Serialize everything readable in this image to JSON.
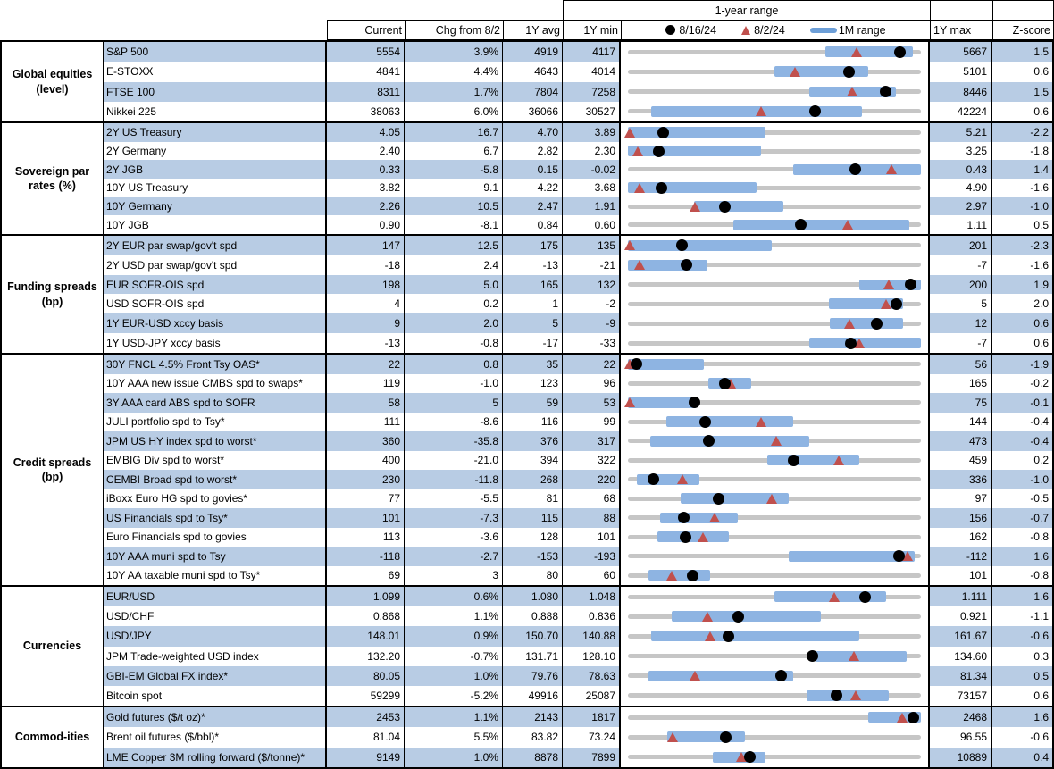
{
  "colors": {
    "stripe": "#b8cce4",
    "bar": "#8eb4e2",
    "legend_bar": "#6d9fd8",
    "triangle": "#c0504d",
    "dot": "#000000",
    "track": "#c6c6c6"
  },
  "chart_data": {
    "type": "table",
    "title": "1-year range",
    "legend": [
      {
        "marker": "black-dot",
        "label": "8/16/24"
      },
      {
        "marker": "red-triangle",
        "label": "8/2/24"
      },
      {
        "marker": "blue-bar",
        "label": "1M range"
      }
    ],
    "columns": [
      "Current",
      "Chg from 8/2",
      "1Y avg",
      "1Y min",
      "1Y max",
      "Z-score"
    ],
    "range_note": "bar = 1M range, dot = 8/16/24 level, triangle = 8/2/24 level, positions are fractions of the 1Y min-to-max span",
    "sections": [
      {
        "category": "Global equities (level)",
        "rows": [
          {
            "label": "S&P 500",
            "current": "5554",
            "chg": "3.9%",
            "avg": "4919",
            "min": "4117",
            "max": "5667",
            "z": "1.5",
            "bar": [
              0.675,
              0.973
            ],
            "tri": 0.78,
            "dot": 0.927
          },
          {
            "label": "E-STOXX",
            "current": "4841",
            "chg": "4.4%",
            "avg": "4643",
            "min": "4014",
            "max": "5101",
            "z": "0.6",
            "bar": [
              0.5,
              0.82
            ],
            "tri": 0.57,
            "dot": 0.755
          },
          {
            "label": "FTSE 100",
            "current": "8311",
            "chg": "1.7%",
            "avg": "7804",
            "min": "7258",
            "max": "8446",
            "z": "1.5",
            "bar": [
              0.62,
              0.915
            ],
            "tri": 0.765,
            "dot": 0.88
          },
          {
            "label": "Nikkei 225",
            "current": "38063",
            "chg": "6.0%",
            "avg": "36066",
            "min": "30527",
            "max": "42224",
            "z": "0.6",
            "bar": [
              0.08,
              0.8
            ],
            "tri": 0.455,
            "dot": 0.64
          }
        ]
      },
      {
        "category": "Sovereign par rates (%)",
        "rows": [
          {
            "label": "2Y US Treasury",
            "current": "4.05",
            "chg": "16.7",
            "avg": "4.70",
            "min": "3.89",
            "max": "5.21",
            "z": "-2.2",
            "bar": [
              0.0,
              0.47
            ],
            "tri": 0.005,
            "dot": 0.12
          },
          {
            "label": "2Y Germany",
            "current": "2.40",
            "chg": "6.7",
            "avg": "2.82",
            "min": "2.30",
            "max": "3.25",
            "z": "-1.8",
            "bar": [
              0.0,
              0.455
            ],
            "tri": 0.035,
            "dot": 0.105
          },
          {
            "label": "2Y JGB",
            "current": "0.33",
            "chg": "-5.8",
            "avg": "0.15",
            "min": "-0.02",
            "max": "0.43",
            "z": "1.4",
            "bar": [
              0.565,
              1.0
            ],
            "tri": 0.9,
            "dot": 0.775
          },
          {
            "label": "10Y US Treasury",
            "current": "3.82",
            "chg": "9.1",
            "avg": "4.22",
            "min": "3.68",
            "max": "4.90",
            "z": "-1.6",
            "bar": [
              0.0,
              0.44
            ],
            "tri": 0.04,
            "dot": 0.115
          },
          {
            "label": "10Y Germany",
            "current": "2.26",
            "chg": "10.5",
            "avg": "2.47",
            "min": "1.91",
            "max": "2.97",
            "z": "-1.0",
            "bar": [
              0.225,
              0.53
            ],
            "tri": 0.23,
            "dot": 0.33
          },
          {
            "label": "10Y JGB",
            "current": "0.90",
            "chg": "-8.1",
            "avg": "0.84",
            "min": "0.60",
            "max": "1.11",
            "z": "0.5",
            "bar": [
              0.36,
              0.96
            ],
            "tri": 0.75,
            "dot": 0.59
          }
        ]
      },
      {
        "category": "Funding spreads (bp)",
        "rows": [
          {
            "label": "2Y EUR par swap/gov't spd",
            "current": "147",
            "chg": "12.5",
            "avg": "175",
            "min": "135",
            "max": "201",
            "z": "-2.3",
            "bar": [
              0.0,
              0.49
            ],
            "tri": 0.005,
            "dot": 0.185
          },
          {
            "label": "2Y USD par swap/gov't spd",
            "current": "-18",
            "chg": "2.4",
            "avg": "-13",
            "min": "-21",
            "max": "-7",
            "z": "-1.6",
            "bar": [
              0.0,
              0.27
            ],
            "tri": 0.04,
            "dot": 0.2
          },
          {
            "label": "EUR SOFR-OIS spd",
            "current": "198",
            "chg": "5.0",
            "avg": "165",
            "min": "132",
            "max": "200",
            "z": "1.9",
            "bar": [
              0.79,
              1.0
            ],
            "tri": 0.89,
            "dot": 0.965
          },
          {
            "label": "USD SOFR-OIS spd",
            "current": "4",
            "chg": "0.2",
            "avg": "1",
            "min": "-2",
            "max": "5",
            "z": "2.0",
            "bar": [
              0.685,
              0.94
            ],
            "tri": 0.88,
            "dot": 0.915
          },
          {
            "label": "1Y EUR-USD xccy basis",
            "current": "9",
            "chg": "2.0",
            "avg": "5",
            "min": "-9",
            "max": "12",
            "z": "0.6",
            "bar": [
              0.69,
              0.94
            ],
            "tri": 0.755,
            "dot": 0.85
          },
          {
            "label": "1Y USD-JPY xccy basis",
            "current": "-13",
            "chg": "-0.8",
            "avg": "-17",
            "min": "-33",
            "max": "-7",
            "z": "0.6",
            "bar": [
              0.62,
              1.0
            ],
            "tri": 0.79,
            "dot": 0.76
          }
        ]
      },
      {
        "category": "Credit spreads (bp)",
        "rows": [
          {
            "label": "30Y FNCL 4.5% Front Tsy OAS*",
            "current": "22",
            "chg": "0.8",
            "avg": "35",
            "min": "22",
            "max": "56",
            "z": "-1.9",
            "bar": [
              0.0,
              0.26
            ],
            "tri": 0.005,
            "dot": 0.03
          },
          {
            "label": "10Y AAA new issue CMBS spd to swaps*",
            "current": "119",
            "chg": "-1.0",
            "avg": "123",
            "min": "96",
            "max": "165",
            "z": "-0.2",
            "bar": [
              0.275,
              0.42
            ],
            "tri": 0.35,
            "dot": 0.33
          },
          {
            "label": "3Y AAA card ABS spd to SOFR",
            "current": "58",
            "chg": "5",
            "avg": "59",
            "min": "53",
            "max": "75",
            "z": "-0.1",
            "bar": [
              0.0,
              0.235
            ],
            "tri": 0.005,
            "dot": 0.227
          },
          {
            "label": "JULI portfolio spd to Tsy*",
            "current": "111",
            "chg": "-8.6",
            "avg": "116",
            "min": "99",
            "max": "144",
            "z": "-0.4",
            "bar": [
              0.13,
              0.565
            ],
            "tri": 0.455,
            "dot": 0.265
          },
          {
            "label": "JPM US HY index spd to worst*",
            "current": "360",
            "chg": "-35.8",
            "avg": "376",
            "min": "317",
            "max": "473",
            "z": "-0.4",
            "bar": [
              0.075,
              0.62
            ],
            "tri": 0.505,
            "dot": 0.275
          },
          {
            "label": "EMBIG Div spd to worst*",
            "current": "400",
            "chg": "-21.0",
            "avg": "394",
            "min": "322",
            "max": "459",
            "z": "0.2",
            "bar": [
              0.475,
              0.79
            ],
            "tri": 0.72,
            "dot": 0.567
          },
          {
            "label": "CEMBI Broad spd to worst*",
            "current": "230",
            "chg": "-11.8",
            "avg": "268",
            "min": "220",
            "max": "336",
            "z": "-1.0",
            "bar": [
              0.03,
              0.245
            ],
            "tri": 0.185,
            "dot": 0.086
          },
          {
            "label": "iBoxx Euro HG spd to govies*",
            "current": "77",
            "chg": "-5.5",
            "avg": "81",
            "min": "68",
            "max": "97",
            "z": "-0.5",
            "bar": [
              0.18,
              0.55
            ],
            "tri": 0.49,
            "dot": 0.31
          },
          {
            "label": "US Financials spd to Tsy*",
            "current": "101",
            "chg": "-7.3",
            "avg": "115",
            "min": "88",
            "max": "156",
            "z": "-0.7",
            "bar": [
              0.11,
              0.375
            ],
            "tri": 0.295,
            "dot": 0.19
          },
          {
            "label": "Euro Financials spd to govies",
            "current": "113",
            "chg": "-3.6",
            "avg": "128",
            "min": "101",
            "max": "162",
            "z": "-0.8",
            "bar": [
              0.1,
              0.345
            ],
            "tri": 0.257,
            "dot": 0.197
          },
          {
            "label": "10Y AAA muni spd to Tsy",
            "current": "-118",
            "chg": "-2.7",
            "avg": "-153",
            "min": "-193",
            "max": "-112",
            "z": "1.6",
            "bar": [
              0.55,
              0.98
            ],
            "tri": 0.955,
            "dot": 0.925
          },
          {
            "label": "10Y AA taxable muni spd to Tsy*",
            "current": "69",
            "chg": "3",
            "avg": "80",
            "min": "60",
            "max": "101",
            "z": "-0.8",
            "bar": [
              0.07,
              0.28
            ],
            "tri": 0.15,
            "dot": 0.22
          }
        ]
      },
      {
        "category": "Currencies",
        "rows": [
          {
            "label": "EUR/USD",
            "current": "1.099",
            "chg": "0.6%",
            "avg": "1.080",
            "min": "1.048",
            "max": "1.111",
            "z": "1.6",
            "bar": [
              0.5,
              0.88
            ],
            "tri": 0.705,
            "dot": 0.81
          },
          {
            "label": "USD/CHF",
            "current": "0.868",
            "chg": "1.1%",
            "avg": "0.888",
            "min": "0.836",
            "max": "0.921",
            "z": "-1.1",
            "bar": [
              0.15,
              0.66
            ],
            "tri": 0.27,
            "dot": 0.377
          },
          {
            "label": "USD/JPY",
            "current": "148.01",
            "chg": "0.9%",
            "avg": "150.70",
            "min": "140.88",
            "max": "161.67",
            "z": "-0.6",
            "bar": [
              0.08,
              0.79
            ],
            "tri": 0.28,
            "dot": 0.343
          },
          {
            "label": "JPM Trade-weighted USD index",
            "current": "132.20",
            "chg": "-0.7%",
            "avg": "131.71",
            "min": "128.10",
            "max": "134.60",
            "z": "0.3",
            "bar": [
              0.64,
              0.95
            ],
            "tri": 0.77,
            "dot": 0.63
          },
          {
            "label": "GBI-EM Global FX index*",
            "current": "80.05",
            "chg": "1.0%",
            "avg": "79.76",
            "min": "78.63",
            "max": "81.34",
            "z": "0.5",
            "bar": [
              0.07,
              0.565
            ],
            "tri": 0.23,
            "dot": 0.523
          },
          {
            "label": "Bitcoin spot",
            "current": "59299",
            "chg": "-5.2%",
            "avg": "49916",
            "min": "25087",
            "max": "73157",
            "z": "0.6",
            "bar": [
              0.61,
              0.89
            ],
            "tri": 0.778,
            "dot": 0.712
          }
        ]
      },
      {
        "category": "Commod-ities",
        "rows": [
          {
            "label": "Gold futures ($/t oz)*",
            "current": "2453",
            "chg": "1.1%",
            "avg": "2143",
            "min": "1817",
            "max": "2468",
            "z": "1.6",
            "bar": [
              0.82,
              1.0
            ],
            "tri": 0.935,
            "dot": 0.975
          },
          {
            "label": "Brent oil futures ($/bbl)*",
            "current": "81.04",
            "chg": "5.5%",
            "avg": "83.82",
            "min": "73.24",
            "max": "96.55",
            "z": "-0.6",
            "bar": [
              0.135,
              0.4
            ],
            "tri": 0.153,
            "dot": 0.334
          },
          {
            "label": "LME Copper 3M rolling forward ($/tonne)*",
            "current": "9149",
            "chg": "1.0%",
            "avg": "8878",
            "min": "7899",
            "max": "10889",
            "z": "0.4",
            "bar": [
              0.29,
              0.47
            ],
            "tri": 0.386,
            "dot": 0.417
          }
        ]
      }
    ]
  }
}
